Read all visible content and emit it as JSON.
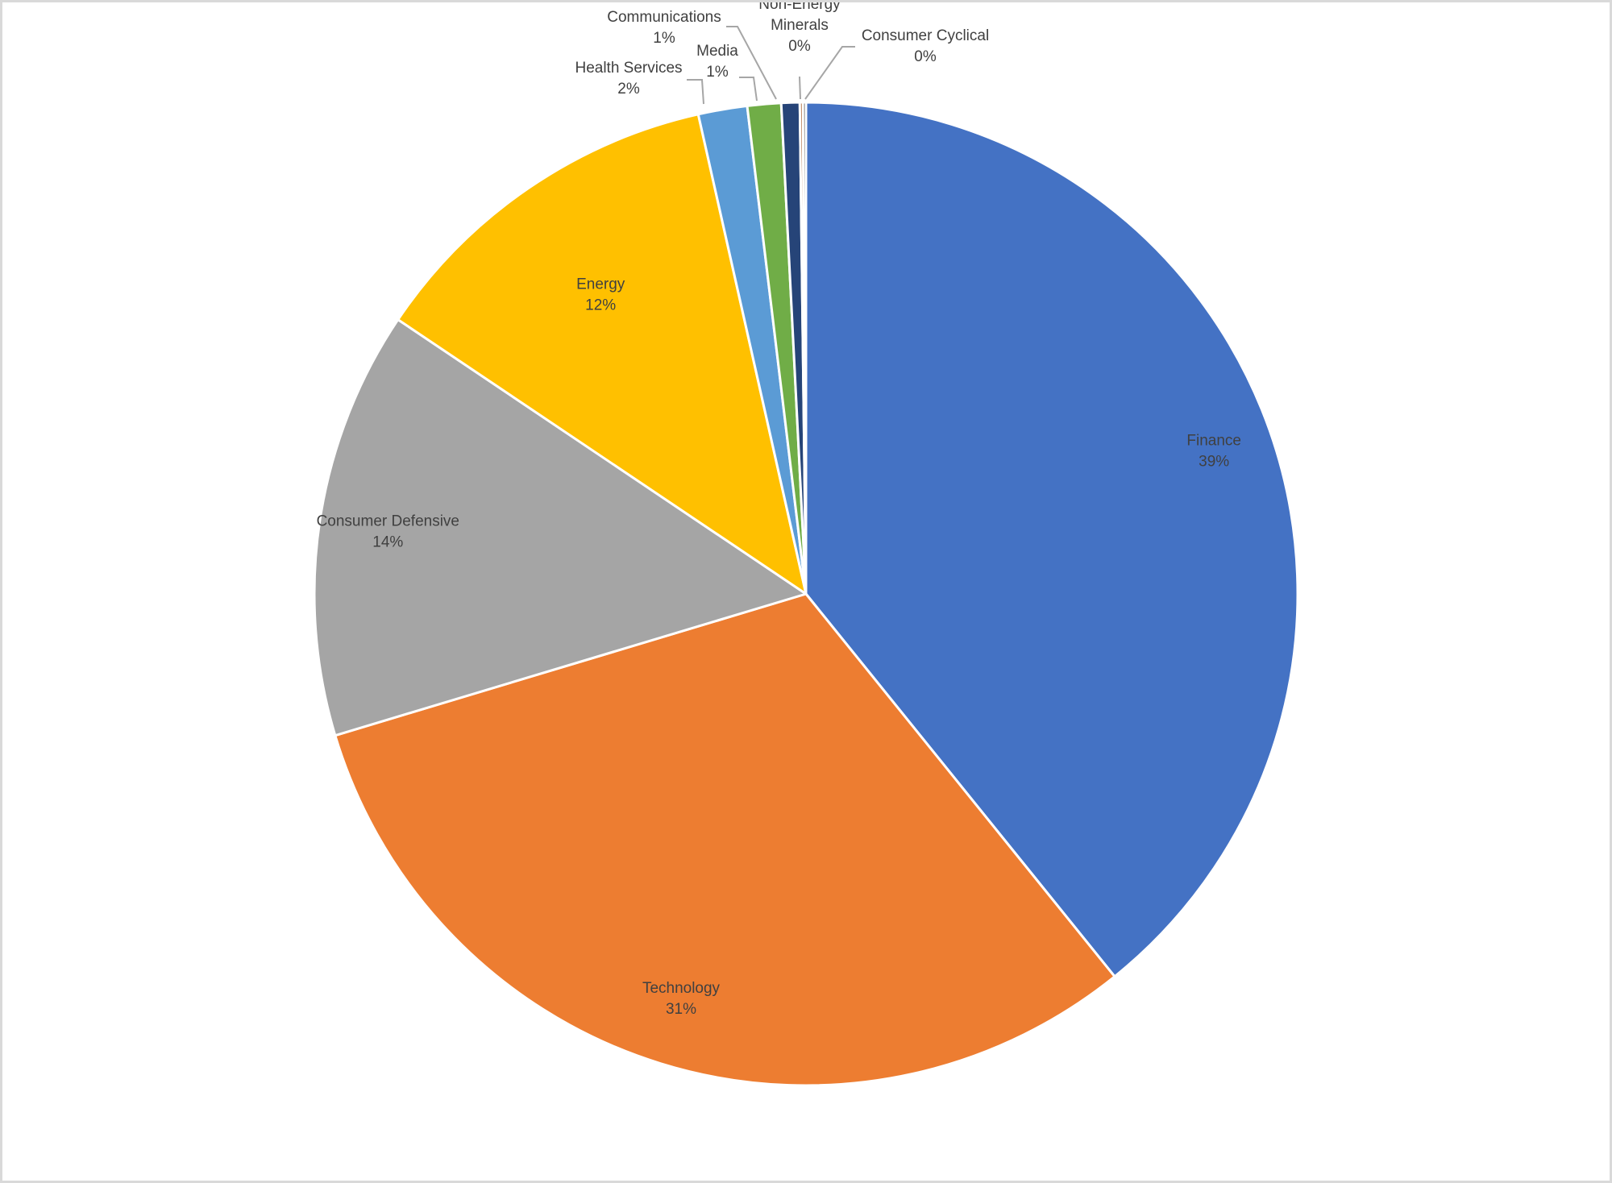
{
  "chart_data": {
    "type": "pie",
    "title": "",
    "slices": [
      {
        "name": "Finance",
        "value": 39,
        "label": "39%",
        "color": "#4472C4"
      },
      {
        "name": "Technology",
        "value": 31,
        "label": "31%",
        "color": "#ED7D31"
      },
      {
        "name": "Consumer Defensive",
        "value": 14,
        "label": "14%",
        "color": "#A5A5A5"
      },
      {
        "name": "Energy",
        "value": 12,
        "label": "12%",
        "color": "#FFC000"
      },
      {
        "name": "Health Services",
        "value": 1.6,
        "label": "2%",
        "color": "#5B9BD5"
      },
      {
        "name": "Media",
        "value": 1.1,
        "label": "1%",
        "color": "#70AD47"
      },
      {
        "name": "Communications",
        "value": 0.6,
        "label": "1%",
        "color": "#264478"
      },
      {
        "name": "Non-Energy Minerals",
        "value": 0.1,
        "label": "0%",
        "color": "#9E480E"
      },
      {
        "name": "Consumer Cyclical",
        "value": 0.1,
        "label": "0%",
        "color": "#636363"
      }
    ],
    "start_angle_deg": 0,
    "direction": "clockwise",
    "data_labels": "category name and percentage",
    "legend": "none"
  }
}
